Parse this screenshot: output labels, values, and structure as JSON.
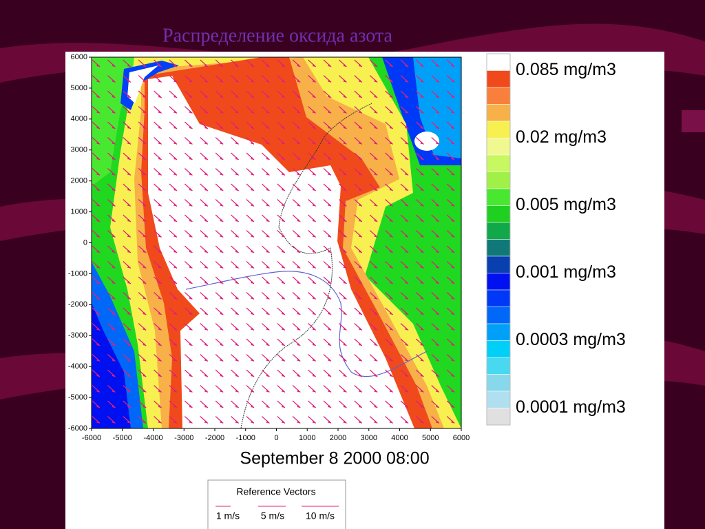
{
  "title": "Распределение оксида азота",
  "map": {
    "xlim": [
      -6000,
      6000
    ],
    "ylim": [
      -6000,
      6000
    ],
    "xticks": [
      -6000,
      -5000,
      -4000,
      -3000,
      -2000,
      -1000,
      0,
      1000,
      2000,
      3000,
      4000,
      5000,
      6000
    ],
    "yticks": [
      -6000,
      -5000,
      -4000,
      -3000,
      -2000,
      -1000,
      0,
      1000,
      2000,
      3000,
      4000,
      5000,
      6000
    ]
  },
  "legend": {
    "colors": [
      "#ffffff",
      "#f04a1c",
      "#f8803c",
      "#f8b048",
      "#f8f050",
      "#f0f890",
      "#c8f860",
      "#a0f048",
      "#48e830",
      "#20d020",
      "#10a848",
      "#107878",
      "#0840b0",
      "#0010f0",
      "#0038f8",
      "#0068f8",
      "#00a0f8",
      "#00d0f8",
      "#48d8f0",
      "#88d8ec",
      "#b0e0f0",
      "#e0e0e0"
    ],
    "labels": [
      "0.085 mg/m3",
      "0.02 mg/m3",
      "0.005 mg/m3",
      "0.001 mg/m3",
      "0.0003 mg/m3",
      "0.0001 mg/m3"
    ]
  },
  "timestamp": "September 8 2000  08:00",
  "reference": {
    "title": "Reference Vectors",
    "labels": [
      "1 m/s",
      "5 m/s",
      "10 m/s"
    ]
  }
}
